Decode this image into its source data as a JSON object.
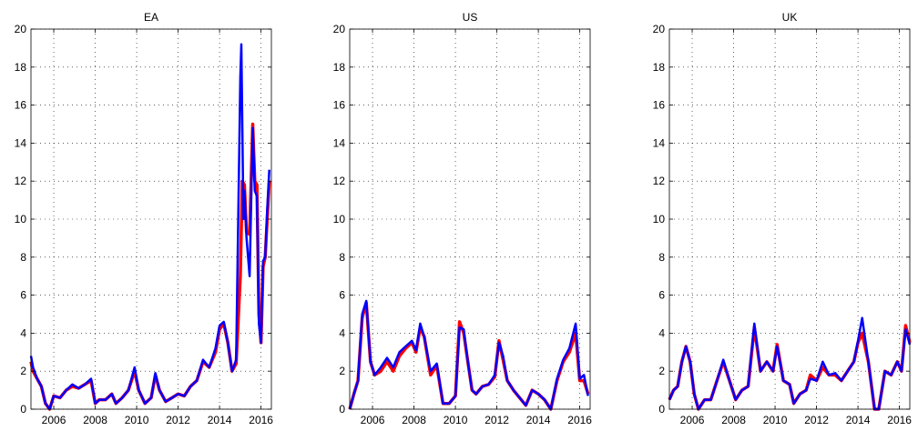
{
  "chart_data": [
    {
      "type": "line",
      "title": "EA",
      "xlim": [
        2004.9,
        2016.5
      ],
      "ylim": [
        0,
        20
      ],
      "xticks": [
        2006,
        2008,
        2010,
        2012,
        2014,
        2016
      ],
      "yticks": [
        0,
        2,
        4,
        6,
        8,
        10,
        12,
        14,
        16,
        18,
        20
      ],
      "grid": true,
      "series": [
        {
          "color": "#ff0000",
          "x": [
            2004.9,
            2005.0,
            2005.2,
            2005.4,
            2005.6,
            2005.8,
            2006.0,
            2006.3,
            2006.6,
            2006.9,
            2007.2,
            2007.5,
            2007.8,
            2008.0,
            2008.2,
            2008.5,
            2008.8,
            2009.0,
            2009.3,
            2009.6,
            2009.9,
            2010.1,
            2010.4,
            2010.7,
            2010.9,
            2011.1,
            2011.4,
            2011.7,
            2012.0,
            2012.3,
            2012.6,
            2012.9,
            2013.2,
            2013.5,
            2013.8,
            2014.0,
            2014.2,
            2014.4,
            2014.6,
            2014.8,
            2015.0,
            2015.1,
            2015.2,
            2015.3,
            2015.45,
            2015.6,
            2015.7,
            2015.8,
            2015.9,
            2016.0,
            2016.1,
            2016.2,
            2016.3,
            2016.4
          ],
          "y": [
            2.5,
            2.0,
            1.6,
            1.2,
            0.3,
            0.0,
            0.7,
            0.6,
            1.0,
            1.2,
            1.1,
            1.3,
            1.5,
            0.3,
            0.5,
            0.5,
            0.8,
            0.3,
            0.6,
            1.0,
            2.0,
            1.0,
            0.3,
            0.6,
            1.8,
            1.0,
            0.4,
            0.6,
            0.8,
            0.7,
            1.2,
            1.5,
            2.5,
            2.2,
            3.0,
            4.2,
            4.5,
            3.5,
            2.0,
            2.4,
            7.0,
            12.0,
            11.8,
            9.3,
            9.2,
            15.0,
            12.0,
            11.8,
            5.0,
            3.5,
            7.5,
            8.0,
            10.0,
            12.0
          ]
        },
        {
          "color": "#0000ff",
          "x": [
            2004.9,
            2005.0,
            2005.2,
            2005.4,
            2005.6,
            2005.8,
            2006.0,
            2006.3,
            2006.6,
            2006.9,
            2007.2,
            2007.5,
            2007.8,
            2008.0,
            2008.2,
            2008.5,
            2008.8,
            2009.0,
            2009.3,
            2009.6,
            2009.9,
            2010.1,
            2010.4,
            2010.7,
            2010.9,
            2011.1,
            2011.4,
            2011.7,
            2012.0,
            2012.3,
            2012.6,
            2012.9,
            2013.2,
            2013.5,
            2013.8,
            2014.0,
            2014.2,
            2014.4,
            2014.6,
            2014.8,
            2015.0,
            2015.05,
            2015.15,
            2015.2,
            2015.3,
            2015.45,
            2015.6,
            2015.7,
            2015.8,
            2015.9,
            2016.0,
            2016.1,
            2016.2,
            2016.3,
            2016.4
          ],
          "y": [
            2.8,
            2.2,
            1.6,
            1.2,
            0.3,
            0.0,
            0.7,
            0.6,
            1.0,
            1.3,
            1.1,
            1.3,
            1.6,
            0.3,
            0.5,
            0.5,
            0.8,
            0.3,
            0.6,
            1.0,
            2.2,
            1.0,
            0.3,
            0.6,
            1.9,
            1.0,
            0.4,
            0.6,
            0.8,
            0.7,
            1.2,
            1.5,
            2.6,
            2.2,
            3.2,
            4.4,
            4.6,
            3.5,
            2.0,
            2.6,
            17.5,
            19.2,
            10.0,
            11.5,
            9.0,
            7.0,
            14.8,
            11.5,
            11.2,
            4.5,
            3.5,
            7.8,
            8.0,
            10.5,
            12.6
          ]
        }
      ]
    },
    {
      "type": "line",
      "title": "US",
      "xlim": [
        2004.9,
        2016.5
      ],
      "ylim": [
        0,
        20
      ],
      "xticks": [
        2006,
        2008,
        2010,
        2012,
        2014,
        2016
      ],
      "yticks": [
        0,
        2,
        4,
        6,
        8,
        10,
        12,
        14,
        16,
        18,
        20
      ],
      "grid": true,
      "series": [
        {
          "color": "#ff0000",
          "x": [
            2004.9,
            2005.1,
            2005.3,
            2005.5,
            2005.7,
            2005.9,
            2006.1,
            2006.4,
            2006.7,
            2007.0,
            2007.3,
            2007.6,
            2007.9,
            2008.1,
            2008.3,
            2008.5,
            2008.8,
            2009.1,
            2009.4,
            2009.7,
            2010.0,
            2010.2,
            2010.4,
            2010.6,
            2010.8,
            2011.0,
            2011.3,
            2011.6,
            2011.9,
            2012.1,
            2012.3,
            2012.5,
            2012.8,
            2013.1,
            2013.4,
            2013.7,
            2014.0,
            2014.3,
            2014.6,
            2014.9,
            2015.2,
            2015.5,
            2015.8,
            2016.0,
            2016.2,
            2016.4
          ],
          "y": [
            0.0,
            0.8,
            1.5,
            4.8,
            5.6,
            2.5,
            1.8,
            2.0,
            2.5,
            2.0,
            2.8,
            3.2,
            3.5,
            3.0,
            4.3,
            3.8,
            1.8,
            2.3,
            0.3,
            0.3,
            0.7,
            4.6,
            4.0,
            2.5,
            1.0,
            0.8,
            1.2,
            1.3,
            1.7,
            3.6,
            2.6,
            1.5,
            1.0,
            0.6,
            0.2,
            1.0,
            0.8,
            0.5,
            0.0,
            1.5,
            2.5,
            3.0,
            4.0,
            1.5,
            1.5,
            0.8
          ]
        },
        {
          "color": "#0000ff",
          "x": [
            2004.9,
            2005.1,
            2005.3,
            2005.5,
            2005.7,
            2005.9,
            2006.1,
            2006.4,
            2006.7,
            2007.0,
            2007.3,
            2007.6,
            2007.9,
            2008.1,
            2008.3,
            2008.5,
            2008.8,
            2009.1,
            2009.4,
            2009.7,
            2010.0,
            2010.2,
            2010.4,
            2010.6,
            2010.8,
            2011.0,
            2011.3,
            2011.6,
            2011.9,
            2012.1,
            2012.3,
            2012.5,
            2012.8,
            2013.1,
            2013.4,
            2013.7,
            2014.0,
            2014.3,
            2014.6,
            2014.9,
            2015.2,
            2015.5,
            2015.8,
            2016.0,
            2016.2,
            2016.4
          ],
          "y": [
            0.0,
            0.8,
            1.5,
            5.0,
            5.7,
            2.5,
            1.8,
            2.2,
            2.7,
            2.2,
            3.0,
            3.3,
            3.6,
            3.1,
            4.5,
            3.8,
            2.0,
            2.4,
            0.3,
            0.3,
            0.7,
            4.3,
            4.2,
            2.5,
            1.0,
            0.8,
            1.2,
            1.3,
            1.8,
            3.5,
            2.8,
            1.5,
            1.0,
            0.6,
            0.2,
            1.0,
            0.8,
            0.5,
            0.0,
            1.6,
            2.6,
            3.2,
            4.5,
            1.6,
            1.8,
            0.7
          ]
        }
      ]
    },
    {
      "type": "line",
      "title": "UK",
      "xlim": [
        2004.9,
        2016.5
      ],
      "ylim": [
        0,
        20
      ],
      "xticks": [
        2006,
        2008,
        2010,
        2012,
        2014,
        2016
      ],
      "yticks": [
        0,
        2,
        4,
        6,
        8,
        10,
        12,
        14,
        16,
        18,
        20
      ],
      "grid": true,
      "series": [
        {
          "color": "#ff0000",
          "x": [
            2004.9,
            2005.1,
            2005.3,
            2005.5,
            2005.7,
            2005.9,
            2006.1,
            2006.3,
            2006.6,
            2006.9,
            2007.2,
            2007.5,
            2007.8,
            2008.1,
            2008.4,
            2008.7,
            2009.0,
            2009.3,
            2009.6,
            2009.9,
            2010.1,
            2010.4,
            2010.7,
            2010.9,
            2011.2,
            2011.5,
            2011.7,
            2012.0,
            2012.3,
            2012.6,
            2012.9,
            2013.2,
            2013.5,
            2013.8,
            2014.0,
            2014.2,
            2014.5,
            2014.8,
            2015.0,
            2015.3,
            2015.6,
            2015.9,
            2016.1,
            2016.3,
            2016.5
          ],
          "y": [
            0.5,
            1.0,
            1.2,
            2.5,
            3.3,
            2.5,
            0.8,
            0.0,
            0.5,
            0.5,
            1.5,
            2.5,
            1.5,
            0.5,
            1.0,
            1.2,
            4.3,
            2.0,
            2.5,
            2.0,
            3.4,
            1.5,
            1.3,
            0.3,
            0.8,
            1.0,
            1.8,
            1.5,
            2.2,
            1.8,
            1.8,
            1.5,
            2.0,
            2.5,
            3.5,
            4.0,
            2.5,
            0.0,
            0.0,
            2.0,
            1.8,
            2.5,
            2.0,
            4.4,
            3.5
          ]
        },
        {
          "color": "#0000ff",
          "x": [
            2004.9,
            2005.1,
            2005.3,
            2005.5,
            2005.7,
            2005.9,
            2006.1,
            2006.3,
            2006.6,
            2006.9,
            2007.2,
            2007.5,
            2007.8,
            2008.1,
            2008.4,
            2008.7,
            2009.0,
            2009.3,
            2009.6,
            2009.9,
            2010.1,
            2010.4,
            2010.7,
            2010.9,
            2011.2,
            2011.5,
            2011.7,
            2012.0,
            2012.3,
            2012.6,
            2012.9,
            2013.2,
            2013.5,
            2013.8,
            2014.0,
            2014.2,
            2014.5,
            2014.8,
            2015.0,
            2015.3,
            2015.6,
            2015.9,
            2016.1,
            2016.3,
            2016.5
          ],
          "y": [
            0.5,
            1.0,
            1.2,
            2.5,
            3.3,
            2.5,
            0.8,
            0.0,
            0.5,
            0.5,
            1.5,
            2.6,
            1.5,
            0.5,
            1.0,
            1.2,
            4.5,
            2.0,
            2.5,
            2.0,
            3.3,
            1.5,
            1.3,
            0.3,
            0.8,
            1.0,
            1.6,
            1.5,
            2.5,
            1.8,
            1.9,
            1.5,
            2.0,
            2.5,
            3.6,
            4.8,
            2.5,
            0.0,
            0.0,
            2.0,
            1.8,
            2.5,
            2.0,
            4.2,
            3.4
          ]
        }
      ]
    }
  ]
}
